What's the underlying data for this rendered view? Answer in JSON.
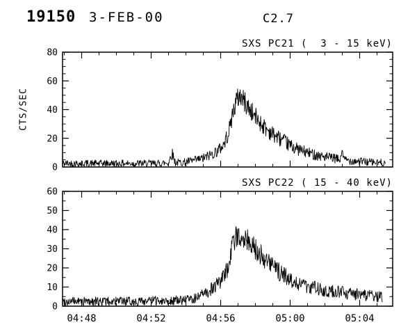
{
  "header": {
    "event_number": "19150",
    "date": "3-FEB-00",
    "class": "C2.7"
  },
  "chart_data": [
    {
      "type": "line",
      "title": "SXS PC21 (  3 - 15 keV)",
      "ylabel": "CTS/SEC",
      "x_unit": "time UT (minutes after 04:00)",
      "xlim": [
        46.9,
        65.9
      ],
      "ylim": [
        0,
        80
      ],
      "y_major_ticks": [
        0,
        20,
        40,
        60,
        80
      ],
      "y_minor_step": 5,
      "x_major_ticks": [
        48,
        52,
        56,
        60,
        64
      ],
      "x_tick_labels": [
        "04:48",
        "04:52",
        "04:56",
        "05:00",
        "05:04"
      ],
      "x_minor_step": 1,
      "show_x_labels": false,
      "grid": false,
      "envelope": [
        [
          46.9,
          2.5
        ],
        [
          50.0,
          2.5
        ],
        [
          52.5,
          2.5
        ],
        [
          53.0,
          3
        ],
        [
          53.2,
          10
        ],
        [
          53.4,
          3
        ],
        [
          54.0,
          3.5
        ],
        [
          54.5,
          4.5
        ],
        [
          55.0,
          6
        ],
        [
          55.5,
          9
        ],
        [
          55.9,
          12
        ],
        [
          56.2,
          16
        ],
        [
          56.5,
          26
        ],
        [
          56.7,
          38
        ],
        [
          56.9,
          46
        ],
        [
          57.1,
          50
        ],
        [
          57.3,
          47
        ],
        [
          57.5,
          43
        ],
        [
          57.8,
          38
        ],
        [
          58.2,
          32
        ],
        [
          58.6,
          27
        ],
        [
          59.0,
          23
        ],
        [
          59.5,
          19
        ],
        [
          60.0,
          15
        ],
        [
          60.5,
          12
        ],
        [
          61.0,
          10
        ],
        [
          61.5,
          8.5
        ],
        [
          62.0,
          7
        ],
        [
          62.5,
          6
        ],
        [
          62.9,
          5
        ],
        [
          63.0,
          13
        ],
        [
          63.1,
          5
        ],
        [
          63.5,
          4.5
        ],
        [
          64.0,
          4
        ],
        [
          64.5,
          3.5
        ],
        [
          65.0,
          3
        ],
        [
          65.5,
          3
        ]
      ],
      "noise": {
        "seed": 42,
        "base": 1.0,
        "sqrt_coeff": 1.0
      },
      "sample_step": 0.025
    },
    {
      "type": "line",
      "title": "SXS PC22 ( 15 - 40 keV)",
      "ylabel": "",
      "x_unit": "time UT (minutes after 04:00)",
      "xlim": [
        46.9,
        65.9
      ],
      "ylim": [
        0,
        60
      ],
      "y_major_ticks": [
        0,
        10,
        20,
        30,
        40,
        50,
        60
      ],
      "y_minor_step": 5,
      "x_major_ticks": [
        48,
        52,
        56,
        60,
        64
      ],
      "x_tick_labels": [
        "04:48",
        "04:52",
        "04:56",
        "05:00",
        "05:04"
      ],
      "x_minor_step": 1,
      "show_x_labels": true,
      "grid": false,
      "envelope": [
        [
          46.9,
          2.5
        ],
        [
          51.0,
          2.5
        ],
        [
          52.5,
          3
        ],
        [
          53.5,
          3
        ],
        [
          54.3,
          3.5
        ],
        [
          54.8,
          5
        ],
        [
          55.2,
          7
        ],
        [
          55.6,
          10
        ],
        [
          56.0,
          13
        ],
        [
          56.3,
          17
        ],
        [
          56.5,
          24
        ],
        [
          56.7,
          32
        ],
        [
          56.9,
          36
        ],
        [
          57.1,
          38
        ],
        [
          57.3,
          37
        ],
        [
          57.6,
          34
        ],
        [
          58.0,
          30
        ],
        [
          58.4,
          26
        ],
        [
          58.8,
          22
        ],
        [
          59.2,
          19
        ],
        [
          59.6,
          16.5
        ],
        [
          60.0,
          14
        ],
        [
          60.5,
          12
        ],
        [
          61.0,
          10.5
        ],
        [
          61.5,
          9.5
        ],
        [
          62.0,
          8.5
        ],
        [
          62.5,
          7.5
        ],
        [
          63.0,
          7
        ],
        [
          63.5,
          6.5
        ],
        [
          64.0,
          6
        ],
        [
          64.5,
          5.5
        ],
        [
          65.0,
          5
        ],
        [
          65.3,
          5
        ]
      ],
      "noise": {
        "seed": 99,
        "base": 1.0,
        "sqrt_coeff": 0.9
      },
      "sample_step": 0.025
    }
  ],
  "colors": {
    "foreground": "#000000",
    "background": "#ffffff"
  }
}
